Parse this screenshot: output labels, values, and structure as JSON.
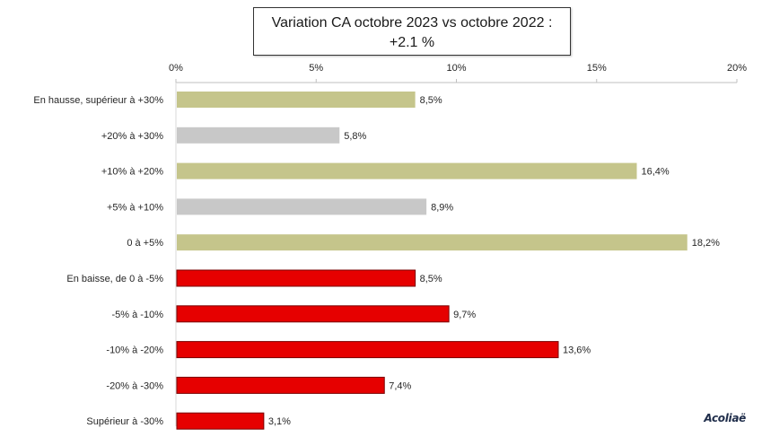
{
  "chart_data": {
    "type": "bar",
    "orientation": "horizontal",
    "title": "Variation CA octobre 2023 vs octobre 2022 :",
    "subtitle": "+2.1 %",
    "xlim": [
      0,
      20
    ],
    "ticks": [
      "0%",
      "5%",
      "10%",
      "15%",
      "20%"
    ],
    "tick_values": [
      0,
      5,
      10,
      15,
      20
    ],
    "categories": [
      "En hausse, supérieur à +30%",
      "+20% à +30%",
      "+10% à +20%",
      "+5% à +10%",
      "0 à +5%",
      "En baisse, de 0 à -5%",
      "-5% à -10%",
      "-10% à -20%",
      "-20% à -30%",
      "Supérieur à -30%"
    ],
    "values": [
      8.5,
      5.8,
      16.4,
      8.9,
      18.2,
      8.5,
      9.7,
      13.6,
      7.4,
      3.1
    ],
    "labels": [
      "8,5%",
      "5,8%",
      "16,4%",
      "8,9%",
      "18,2%",
      "8,5%",
      "9,7%",
      "13,6%",
      "7,4%",
      "3,1%"
    ],
    "colors": [
      "#c5c58b",
      "#c8c8c8",
      "#c5c58b",
      "#c8c8c8",
      "#c5c58b",
      "#e60000",
      "#e60000",
      "#e60000",
      "#e60000",
      "#e60000"
    ],
    "grid": false,
    "legend": "none"
  },
  "watermark": "Acoliaë"
}
